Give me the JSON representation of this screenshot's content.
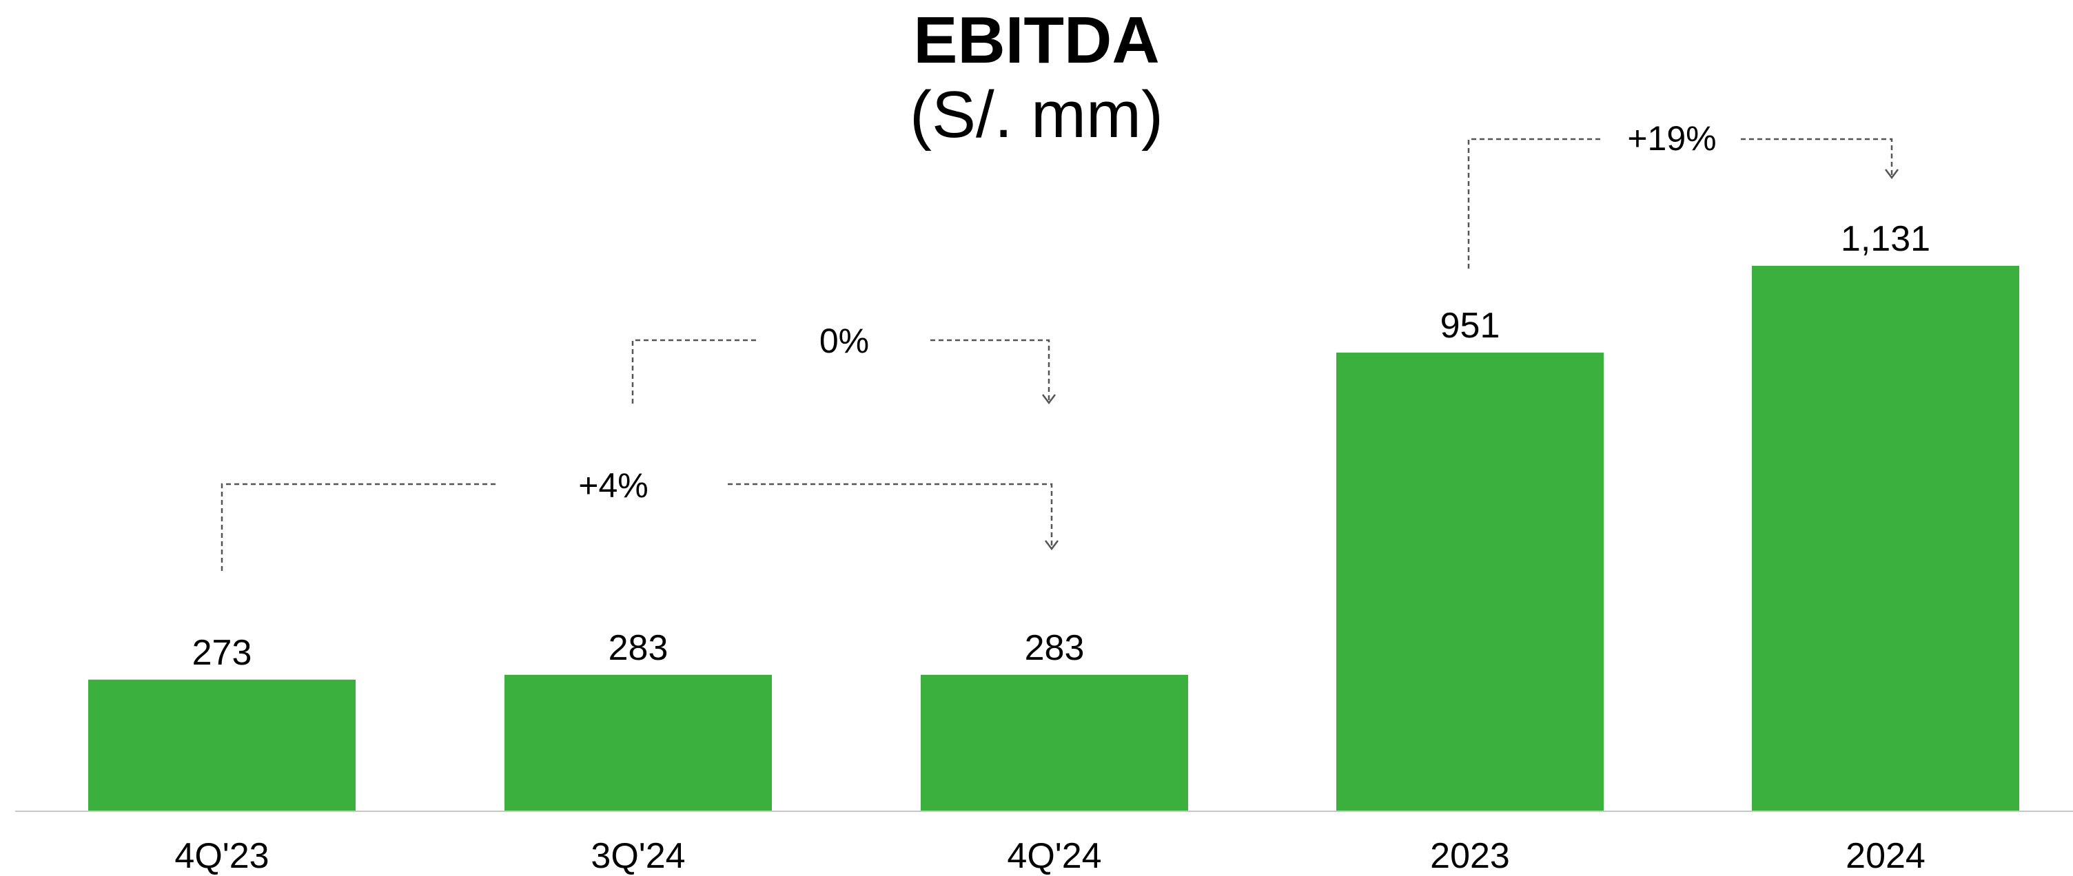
{
  "chart_data": {
    "type": "bar",
    "title": "EBITDA",
    "subtitle": "(S/. mm)",
    "categories": [
      "4Q'23",
      "3Q'24",
      "4Q'24",
      "2023",
      "2024"
    ],
    "values": [
      273,
      283,
      283,
      951,
      1131
    ],
    "value_labels": [
      "273",
      "283",
      "283",
      "951",
      "1,131"
    ],
    "ylim": [
      0,
      1200
    ],
    "grid": false,
    "legend": "none",
    "bar_color": "#3cb03c",
    "annotations": [
      {
        "label": "0%",
        "from": "3Q'24",
        "to": "4Q'24"
      },
      {
        "label": "+4%",
        "from": "4Q'23",
        "to": "4Q'24"
      },
      {
        "label": "+19%",
        "from": "2023",
        "to": "2024"
      }
    ]
  }
}
